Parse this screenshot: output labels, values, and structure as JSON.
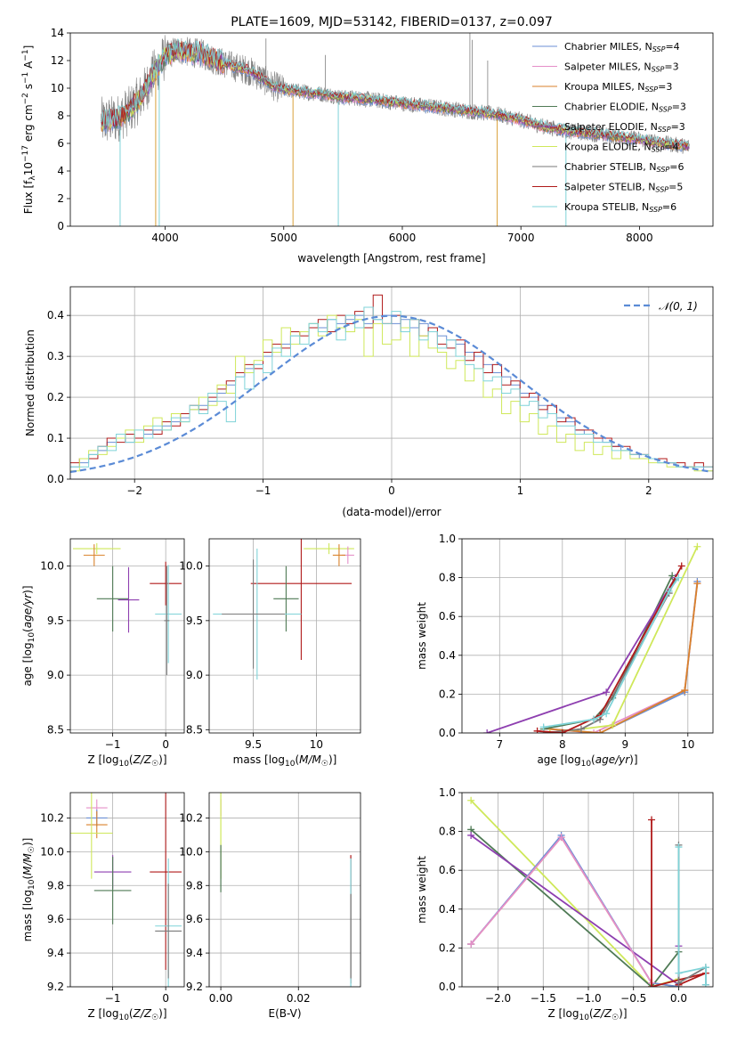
{
  "figure_title": "PLATE=1609, MJD=53142, FIBERID=0137, z=0.097",
  "model_colors": {
    "Chabrier MILES": "#6b8fd4",
    "Salpeter MILES": "#e58fc8",
    "Kroupa MILES": "#d9822b",
    "Chabrier ELODIE": "#4f7a55",
    "Salpeter ELODIE": "#8e3fb0",
    "Kroupa ELODIE": "#cfe85a",
    "Chabrier STELIB": "#7a7a7a",
    "Salpeter STELIB": "#b01a1a",
    "Kroupa STELIB": "#7fd3d8"
  },
  "chart_data": [
    {
      "id": "spectrum",
      "type": "line",
      "title": "PLATE=1609, MJD=53142, FIBERID=0137, z=0.097",
      "xlabel": "wavelength [Angstrom, rest frame]",
      "ylabel": "Flux [f_λ 10^-17 erg cm^-2 s^-1 A^-1]",
      "xlim": [
        3200,
        8620
      ],
      "ylim": [
        0,
        14
      ],
      "xticks": [
        4000,
        5000,
        6000,
        7000,
        8000
      ],
      "yticks": [
        0,
        2,
        4,
        6,
        8,
        10,
        12,
        14
      ],
      "legend_position": "top-right",
      "legend": [
        "Chabrier MILES, N_SSP=4",
        "Salpeter MILES, N_SSP=3",
        "Kroupa MILES, N_SSP=3",
        "Chabrier ELODIE, N_SSP=3",
        "Salpeter ELODIE, N_SSP=3",
        "Kroupa ELODIE, N_SSP=4",
        "Chabrier STELIB, N_SSP=6",
        "Salpeter STELIB, N_SSP=5",
        "Kroupa STELIB, N_SSP=6"
      ],
      "data_points": {
        "wavelength": [
          3500,
          3600,
          3700,
          3800,
          3900,
          4000,
          4100,
          4200,
          4300,
          4400,
          4500,
          4600,
          4700,
          4800,
          4900,
          5000,
          5100,
          5200,
          5300,
          5400,
          5500,
          5600,
          5700,
          5800,
          5900,
          6000,
          6200,
          6400,
          6600,
          6800,
          7000,
          7200,
          7400,
          7600,
          7800,
          8000,
          8200,
          8400
        ],
        "flux": [
          7.6,
          7.8,
          8.4,
          9.4,
          11.0,
          12.3,
          12.8,
          12.6,
          12.5,
          12.1,
          11.8,
          11.5,
          11.3,
          10.8,
          10.2,
          9.9,
          9.8,
          9.7,
          9.6,
          9.5,
          9.3,
          9.3,
          9.2,
          9.1,
          9.0,
          8.9,
          8.7,
          8.5,
          8.3,
          8.1,
          7.7,
          7.2,
          6.9,
          6.7,
          6.5,
          6.3,
          6.0,
          5.8
        ]
      },
      "model_spread": 0.35,
      "note_series": "Observed spectrum (grey, noisy) overplotted with 9 SSP model fits"
    },
    {
      "id": "residuals",
      "type": "histogram",
      "xlabel": "(data-model)/error",
      "ylabel": "Normed distribution",
      "xlim": [
        -2.5,
        2.5
      ],
      "ylim": [
        0,
        0.47
      ],
      "xticks": [
        -2,
        -1,
        0,
        1,
        2
      ],
      "yticks": [
        0,
        0.1,
        0.2,
        0.3,
        0.4
      ],
      "legend_position": "top-right",
      "legend": [
        "N(0,1)"
      ],
      "bin_width": 0.1,
      "bins_from": -2.5,
      "series": [
        {
          "name": "Chabrier MILES",
          "values": [
            0.03,
            0.04,
            0.06,
            0.07,
            0.09,
            0.1,
            0.09,
            0.1,
            0.11,
            0.12,
            0.13,
            0.14,
            0.15,
            0.17,
            0.18,
            0.19,
            0.21,
            0.23,
            0.25,
            0.27,
            0.28,
            0.3,
            0.31,
            0.33,
            0.35,
            0.36,
            0.38,
            0.37,
            0.39,
            0.38,
            0.39,
            0.4,
            0.38,
            0.39,
            0.4,
            0.38,
            0.39,
            0.37,
            0.38,
            0.36,
            0.35,
            0.34,
            0.33,
            0.31,
            0.3,
            0.28,
            0.26,
            0.25,
            0.23,
            0.21,
            0.2,
            0.18,
            0.16,
            0.15,
            0.14,
            0.12,
            0.11,
            0.1,
            0.09,
            0.08,
            0.07,
            0.06,
            0.05,
            0.05,
            0.04,
            0.04,
            0.03,
            0.03,
            0.03,
            0.02
          ]
        },
        {
          "name": "Salpeter STELIB",
          "values": [
            0.04,
            0.05,
            0.05,
            0.08,
            0.1,
            0.09,
            0.11,
            0.1,
            0.12,
            0.11,
            0.14,
            0.13,
            0.16,
            0.18,
            0.17,
            0.2,
            0.22,
            0.24,
            0.26,
            0.28,
            0.27,
            0.31,
            0.33,
            0.32,
            0.36,
            0.35,
            0.37,
            0.39,
            0.36,
            0.4,
            0.38,
            0.41,
            0.37,
            0.45,
            0.38,
            0.4,
            0.36,
            0.39,
            0.35,
            0.37,
            0.33,
            0.32,
            0.34,
            0.29,
            0.31,
            0.26,
            0.28,
            0.23,
            0.24,
            0.2,
            0.21,
            0.17,
            0.18,
            0.14,
            0.15,
            0.12,
            0.12,
            0.1,
            0.1,
            0.08,
            0.08,
            0.06,
            0.06,
            0.05,
            0.05,
            0.04,
            0.04,
            0.03,
            0.04,
            0.03
          ]
        },
        {
          "name": "Kroupa ELODIE",
          "values": [
            0.02,
            0.05,
            0.07,
            0.06,
            0.08,
            0.1,
            0.12,
            0.09,
            0.13,
            0.15,
            0.12,
            0.16,
            0.14,
            0.17,
            0.2,
            0.18,
            0.23,
            0.21,
            0.3,
            0.26,
            0.29,
            0.34,
            0.31,
            0.37,
            0.33,
            0.36,
            0.38,
            0.35,
            0.4,
            0.37,
            0.36,
            0.39,
            0.3,
            0.38,
            0.33,
            0.34,
            0.37,
            0.3,
            0.35,
            0.32,
            0.31,
            0.27,
            0.29,
            0.24,
            0.27,
            0.2,
            0.22,
            0.16,
            0.19,
            0.14,
            0.16,
            0.11,
            0.13,
            0.09,
            0.11,
            0.07,
            0.09,
            0.06,
            0.08,
            0.05,
            0.07,
            0.05,
            0.05,
            0.04,
            0.04,
            0.03,
            0.03,
            0.03,
            0.02,
            0.02
          ]
        },
        {
          "name": "Kroupa STELIB",
          "values": [
            0.03,
            0.03,
            0.06,
            0.08,
            0.07,
            0.11,
            0.09,
            0.12,
            0.1,
            0.13,
            0.12,
            0.15,
            0.14,
            0.18,
            0.16,
            0.21,
            0.19,
            0.14,
            0.25,
            0.22,
            0.28,
            0.26,
            0.32,
            0.3,
            0.35,
            0.33,
            0.38,
            0.36,
            0.39,
            0.34,
            0.4,
            0.37,
            0.42,
            0.39,
            0.38,
            0.41,
            0.36,
            0.39,
            0.34,
            0.36,
            0.32,
            0.34,
            0.3,
            0.28,
            0.27,
            0.24,
            0.25,
            0.21,
            0.22,
            0.18,
            0.19,
            0.15,
            0.16,
            0.13,
            0.13,
            0.11,
            0.11,
            0.09,
            0.09,
            0.07,
            0.07,
            0.06,
            0.06,
            0.05,
            0.04,
            0.04,
            0.03,
            0.03,
            0.03,
            0.03
          ]
        }
      ],
      "gaussian": {
        "mean": 0,
        "sigma": 1
      }
    },
    {
      "id": "age-vs-Z",
      "type": "scatter",
      "xlabel": "Z [log10(Z/Z☉)]",
      "ylabel": "age [log10(age/yr)]",
      "xlim": [
        -1.8,
        0.35
      ],
      "ylim": [
        8.47,
        10.25
      ],
      "xticks": [
        -1,
        0
      ],
      "yticks": [
        8.5,
        9.0,
        9.5,
        10.0
      ],
      "points": [
        {
          "model": "Kroupa ELODIE",
          "x": -1.3,
          "y": 10.16,
          "xerr": 0.45,
          "yerr": 0.05
        },
        {
          "model": "Kroupa MILES",
          "x": -1.35,
          "y": 10.1,
          "xerr": 0.2,
          "yerr": 0.1
        },
        {
          "model": "Chabrier ELODIE",
          "x": -1.0,
          "y": 9.7,
          "xerr": 0.3,
          "yerr": 0.3
        },
        {
          "model": "Salpeter ELODIE",
          "x": -0.7,
          "y": 9.69,
          "xerr": 0.2,
          "yerr": 0.3
        },
        {
          "model": "Salpeter STELIB",
          "x": 0.0,
          "y": 9.84,
          "xerr": 0.3,
          "yerr": 0.2
        },
        {
          "model": "Kroupa STELIB",
          "x": 0.05,
          "y": 9.56,
          "xerr": 0.25,
          "yerr": 0.45
        },
        {
          "model": "Chabrier STELIB",
          "x": 0.02,
          "y": 9.5,
          "xerr": 0.05,
          "yerr": 0.5
        }
      ]
    },
    {
      "id": "age-vs-mass",
      "type": "scatter",
      "xlabel": "mass [log10(M/M☉)]",
      "ylabel": "",
      "xlim": [
        9.15,
        10.35
      ],
      "ylim": [
        8.47,
        10.25
      ],
      "xticks": [
        9.5,
        10.0
      ],
      "yticks": [
        8.5,
        9.0,
        9.5,
        10.0
      ],
      "points": [
        {
          "model": "Kroupa ELODIE",
          "x": 10.1,
          "y": 10.16,
          "xerr": 0.2,
          "yerr": 0.05
        },
        {
          "model": "Salpeter MILES",
          "x": 10.25,
          "y": 10.1,
          "xerr": 0.05,
          "yerr": 0.08
        },
        {
          "model": "Kroupa MILES",
          "x": 10.18,
          "y": 10.1,
          "xerr": 0.05,
          "yerr": 0.1
        },
        {
          "model": "Salpeter STELIB",
          "x": 9.88,
          "y": 9.84,
          "xerr": 0.4,
          "yerr": 0.7
        },
        {
          "model": "Chabrier ELODIE",
          "x": 9.76,
          "y": 9.7,
          "xerr": 0.1,
          "yerr": 0.3
        },
        {
          "model": "Kroupa STELIB",
          "x": 9.53,
          "y": 9.56,
          "xerr": 0.35,
          "yerr": 0.6
        },
        {
          "model": "Chabrier STELIB",
          "x": 9.5,
          "y": 9.56,
          "xerr": 0.25,
          "yerr": 0.5
        }
      ]
    },
    {
      "id": "weight-vs-age",
      "type": "line",
      "xlabel": "age [log10(age/yr)]",
      "ylabel": "mass weight",
      "xlim": [
        6.4,
        10.4
      ],
      "ylim": [
        0,
        1
      ],
      "xticks": [
        7,
        8,
        9,
        10
      ],
      "yticks": [
        0.0,
        0.2,
        0.4,
        0.6,
        0.8,
        1.0
      ],
      "series": [
        {
          "name": "Chabrier MILES",
          "x": [
            7.8,
            8.6,
            9.95,
            10.15
          ],
          "y": [
            0.02,
            0.0,
            0.21,
            0.78
          ]
        },
        {
          "name": "Salpeter MILES",
          "x": [
            7.8,
            8.5,
            9.95,
            10.15
          ],
          "y": [
            0.02,
            0.0,
            0.22,
            0.77
          ]
        },
        {
          "name": "Kroupa MILES",
          "x": [
            7.8,
            8.6,
            9.95,
            10.15
          ],
          "y": [
            0.02,
            0.0,
            0.22,
            0.77
          ]
        },
        {
          "name": "Chabrier ELODIE",
          "x": [
            7.7,
            8.5,
            8.8,
            9.75
          ],
          "y": [
            0.02,
            0.07,
            0.18,
            0.81
          ]
        },
        {
          "name": "Salpeter ELODIE",
          "x": [
            6.8,
            8.7,
            9.8
          ],
          "y": [
            0.0,
            0.21,
            0.8
          ]
        },
        {
          "name": "Kroupa ELODIE",
          "x": [
            7.8,
            8.8,
            10.15
          ],
          "y": [
            0.0,
            0.04,
            0.96
          ]
        },
        {
          "name": "Chabrier STELIB",
          "x": [
            7.7,
            8.3,
            8.6,
            9.7,
            9.8
          ],
          "y": [
            0.0,
            0.02,
            0.07,
            0.72,
            0.79
          ]
        },
        {
          "name": "Salpeter STELIB",
          "x": [
            7.6,
            8.0,
            8.6,
            9.9
          ],
          "y": [
            0.01,
            0.0,
            0.09,
            0.86
          ]
        },
        {
          "name": "Kroupa STELIB",
          "x": [
            7.7,
            8.5,
            8.7,
            9.7,
            9.85
          ],
          "y": [
            0.03,
            0.07,
            0.1,
            0.73,
            0.8
          ]
        }
      ]
    },
    {
      "id": "mass-vs-Z",
      "type": "scatter",
      "xlabel": "Z [log10(Z/Z☉)]",
      "ylabel": "mass [log10(M/M☉)]",
      "xlim": [
        -1.8,
        0.35
      ],
      "ylim": [
        9.2,
        10.35
      ],
      "xticks": [
        -1,
        0
      ],
      "yticks": [
        9.2,
        9.4,
        9.6,
        9.8,
        10.0,
        10.2
      ],
      "points": [
        {
          "model": "Salpeter MILES",
          "x": -1.3,
          "y": 10.26,
          "xerr": 0.2,
          "yerr": 0.05
        },
        {
          "model": "Chabrier MILES",
          "x": -1.3,
          "y": 10.2,
          "xerr": 0.2,
          "yerr": 0.05
        },
        {
          "model": "Kroupa MILES",
          "x": -1.3,
          "y": 10.16,
          "xerr": 0.2,
          "yerr": 0.08
        },
        {
          "model": "Kroupa ELODIE",
          "x": -1.4,
          "y": 10.11,
          "xerr": 0.4,
          "yerr": 0.27
        },
        {
          "model": "Salpeter ELODIE",
          "x": -1.0,
          "y": 9.88,
          "xerr": 0.35,
          "yerr": 0.1
        },
        {
          "model": "Chabrier ELODIE",
          "x": -1.0,
          "y": 9.77,
          "xerr": 0.35,
          "yerr": 0.2
        },
        {
          "model": "Salpeter STELIB",
          "x": 0.0,
          "y": 9.88,
          "xerr": 0.3,
          "yerr": 0.58
        },
        {
          "model": "Kroupa STELIB",
          "x": 0.05,
          "y": 9.56,
          "xerr": 0.25,
          "yerr": 0.4
        },
        {
          "model": "Chabrier STELIB",
          "x": 0.05,
          "y": 9.53,
          "xerr": 0.25,
          "yerr": 0.28
        }
      ]
    },
    {
      "id": "mass-vs-EBV",
      "type": "scatter",
      "xlabel": "E(B-V)",
      "ylabel": "",
      "xlim": [
        -0.003,
        0.036
      ],
      "ylim": [
        9.2,
        10.35
      ],
      "xticks": [
        0.0,
        0.02
      ],
      "yticks": [
        9.2,
        9.4,
        9.6,
        9.8,
        10.0,
        10.2
      ],
      "points": [
        {
          "model": "Salpeter MILES",
          "x": 0.0,
          "y": 10.26,
          "yerr": 0.05
        },
        {
          "model": "Kroupa ELODIE",
          "x": 0.0,
          "y": 10.11,
          "yerr": 0.27
        },
        {
          "model": "Chabrier ELODIE",
          "x": 0.0,
          "y": 9.9,
          "yerr": 0.14
        },
        {
          "model": "Salpeter STELIB",
          "x": 0.0335,
          "y": 9.6,
          "yerr": 0.38
        },
        {
          "model": "Kroupa STELIB",
          "x": 0.0335,
          "y": 9.56,
          "yerr": 0.4
        },
        {
          "model": "Chabrier STELIB",
          "x": 0.0335,
          "y": 9.5,
          "yerr": 0.25
        }
      ]
    },
    {
      "id": "weight-vs-Z",
      "type": "line",
      "xlabel": "Z [log10(Z/Z☉)]",
      "ylabel": "mass weight",
      "xlim": [
        -2.4,
        0.38
      ],
      "ylim": [
        0,
        1
      ],
      "xticks": [
        -2.0,
        -1.5,
        -1.0,
        -0.5,
        0.0
      ],
      "yticks": [
        0.0,
        0.2,
        0.4,
        0.6,
        0.8,
        1.0
      ],
      "series": [
        {
          "name": "Kroupa ELODIE",
          "x": [
            -2.3,
            -0.3,
            0.0
          ],
          "y": [
            0.96,
            0.0,
            0.04
          ]
        },
        {
          "name": "Chabrier ELODIE",
          "x": [
            -2.3,
            -0.3,
            0.0
          ],
          "y": [
            0.81,
            0.0,
            0.18
          ]
        },
        {
          "name": "Salpeter ELODIE",
          "x": [
            -2.3,
            0.0,
            0.0
          ],
          "y": [
            0.78,
            0.01,
            0.21
          ]
        },
        {
          "name": "Kroupa MILES",
          "x": [
            -2.3,
            -1.3,
            -0.3,
            0.0
          ],
          "y": [
            0.22,
            0.77,
            0.02,
            0.0
          ]
        },
        {
          "name": "Chabrier MILES",
          "x": [
            -2.3,
            -1.3,
            -0.3,
            0.0
          ],
          "y": [
            0.22,
            0.78,
            0.02,
            0.0
          ]
        },
        {
          "name": "Salpeter MILES",
          "x": [
            -2.3,
            -1.3,
            -0.3
          ],
          "y": [
            0.22,
            0.77,
            0.02
          ]
        },
        {
          "name": "Salpeter STELIB",
          "x": [
            -0.3,
            -0.3,
            0.3,
            0.0
          ],
          "y": [
            0.86,
            0.0,
            0.07,
            0.01
          ]
        },
        {
          "name": "Chabrier STELIB",
          "x": [
            0.0,
            0.0,
            0.3,
            0.3
          ],
          "y": [
            0.73,
            0.02,
            0.1,
            0.01
          ]
        },
        {
          "name": "Kroupa STELIB",
          "x": [
            0.0,
            0.0,
            0.3,
            0.3
          ],
          "y": [
            0.72,
            0.07,
            0.1,
            0.01
          ]
        }
      ]
    }
  ]
}
